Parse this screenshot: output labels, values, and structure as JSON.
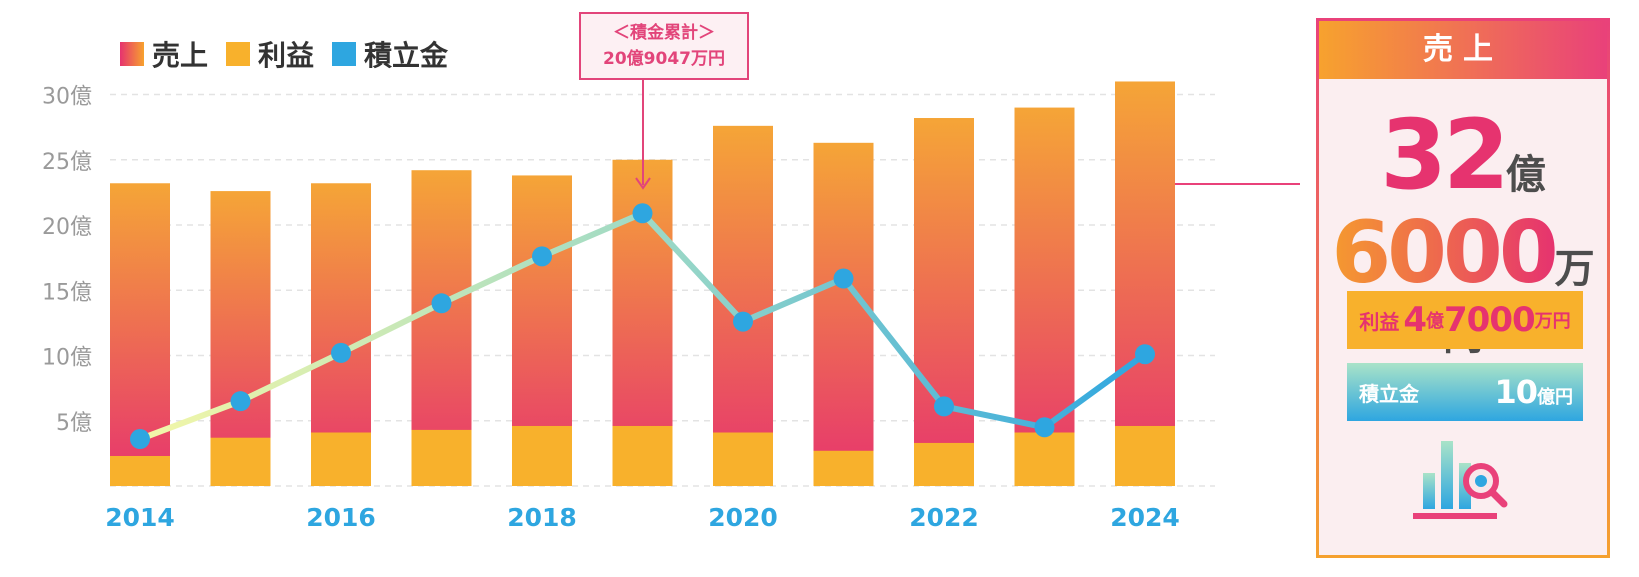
{
  "legend": [
    {
      "label": "売上",
      "color_top": "#f7a22e",
      "color_bottom": "#e6336f"
    },
    {
      "label": "利益",
      "color": "#f8b12c"
    },
    {
      "label": "積立金",
      "color": "#2ea6e0"
    }
  ],
  "annotation": {
    "title": "＜積金累計＞",
    "value": "20億9047万円",
    "color": "#e2457a"
  },
  "chart_data": {
    "type": "bar",
    "x": [
      2014,
      2015,
      2016,
      2017,
      2018,
      2019,
      2020,
      2021,
      2022,
      2023,
      2024
    ],
    "x_tick_labels": [
      "2014",
      "2016",
      "2018",
      "2020",
      "2022",
      "2024"
    ],
    "x_tick_values": [
      2014,
      2016,
      2018,
      2020,
      2022,
      2024
    ],
    "y_tick_labels": [
      "5億",
      "10億",
      "15億",
      "20億",
      "25億",
      "30億"
    ],
    "y_tick_values": [
      5,
      10,
      15,
      20,
      25,
      30
    ],
    "ylim": [
      0,
      32
    ],
    "unit": "億",
    "grid": true,
    "series": [
      {
        "name": "売上",
        "kind": "bar",
        "values": [
          23.2,
          22.6,
          23.2,
          24.2,
          23.8,
          25.0,
          27.6,
          26.3,
          28.2,
          29.0,
          31.0
        ]
      },
      {
        "name": "利益",
        "kind": "bar",
        "values": [
          2.3,
          3.7,
          4.1,
          4.3,
          4.6,
          4.6,
          4.1,
          2.7,
          3.3,
          4.1,
          4.6
        ]
      },
      {
        "name": "積立金",
        "kind": "line",
        "values": [
          3.6,
          6.5,
          10.2,
          14.0,
          17.6,
          20.9,
          12.6,
          15.9,
          6.1,
          4.5,
          10.1
        ]
      }
    ]
  },
  "panel": {
    "title": "売上",
    "sales_oku": "32",
    "sales_oku_unit": "億",
    "sales_man": "6000",
    "sales_man_unit": "万円",
    "profit_label": "利益",
    "profit_oku": "4",
    "profit_oku_unit": "億",
    "profit_man": "7000",
    "profit_man_unit": "万円",
    "fund_label": "積立金",
    "fund_value": "10",
    "fund_unit": "億円",
    "icon": "chart-search-icon"
  }
}
